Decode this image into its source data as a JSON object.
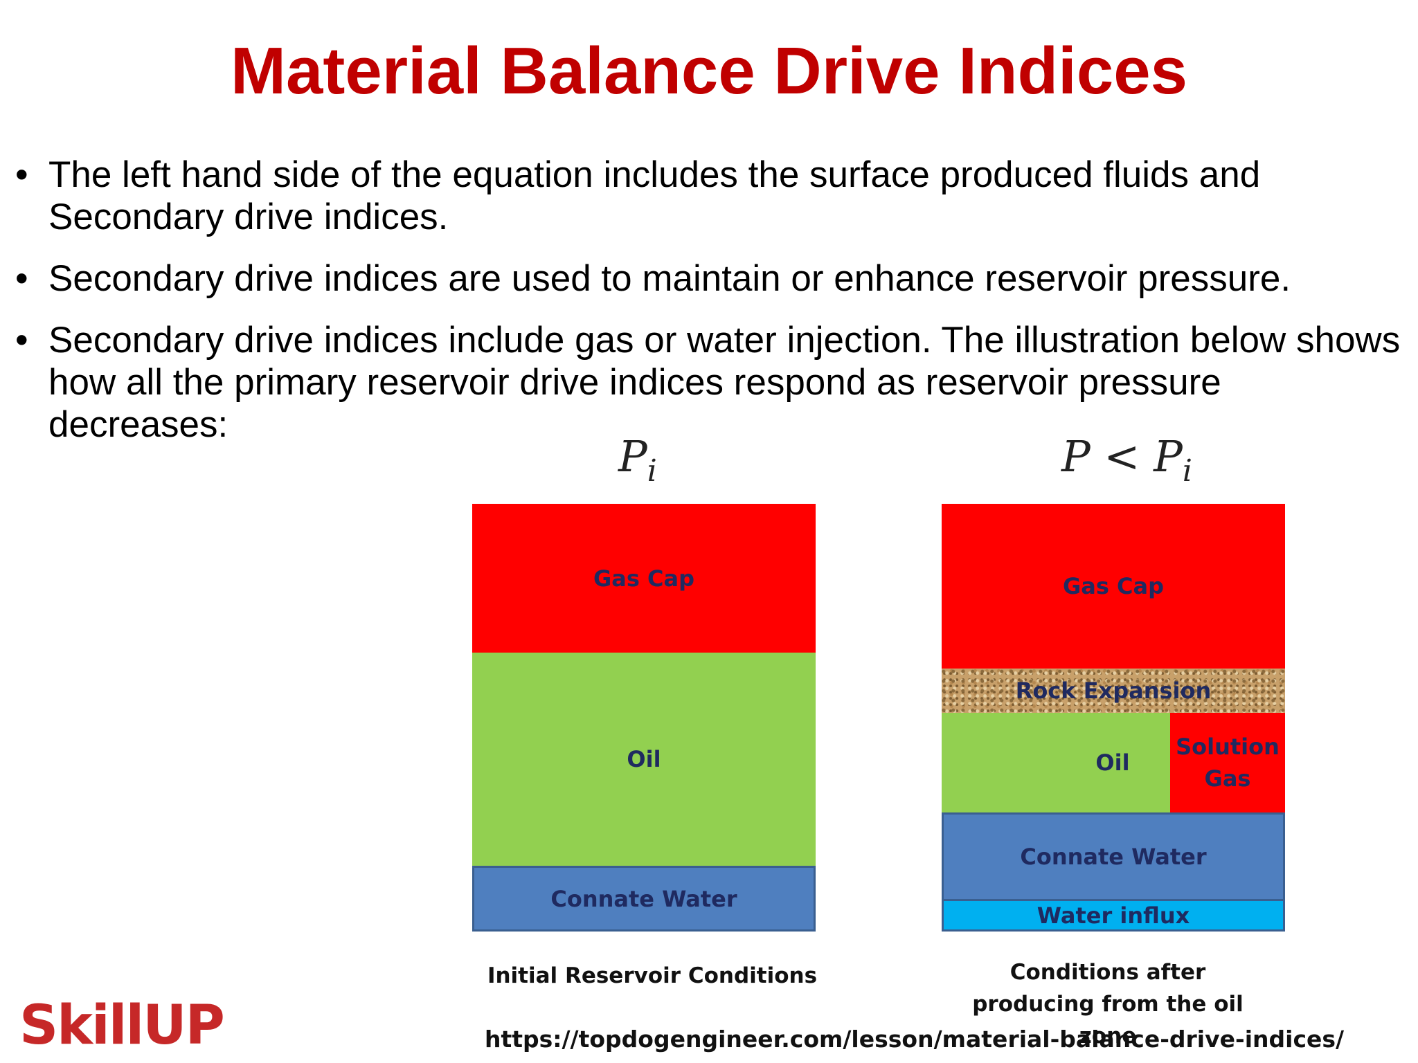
{
  "title": "Material Balance Drive Indices",
  "bullets": [
    "The left hand side of the equation includes the surface produced fluids and Secondary drive indices.",
    "Secondary drive indices are used to maintain or enhance reservoir pressure.",
    "Secondary drive indices include gas or water injection. The illustration below shows how all the primary reservoir drive indices respond as reservoir pressure decreases:"
  ],
  "diagram_left": {
    "formula_main": "P",
    "formula_sub": "i",
    "layers": {
      "gas_cap": "Gas Cap",
      "oil": "Oil",
      "connate_water": "Connate Water"
    },
    "caption": "Initial Reservoir Conditions"
  },
  "diagram_right": {
    "formula_main": "P < P",
    "formula_sub": "i",
    "layers": {
      "gas_cap": "Gas Cap",
      "rock_expansion": "Rock Expansion",
      "oil": "Oil",
      "solution_gas": "Solution Gas",
      "connate_water": "Connate Water",
      "water_influx": "Water influx"
    },
    "caption": "Conditions after producing from the oil zone"
  },
  "logo_text": "SkillUP",
  "source_url": "https://topdogengineer.com/lesson/material-balance-drive-indices/",
  "colors": {
    "title": "#c00000",
    "gas": "#ff0000",
    "oil": "#92d050",
    "connate_water": "#4f7fbf",
    "water_influx": "#00b0f0",
    "rock": "#c8a06a"
  }
}
